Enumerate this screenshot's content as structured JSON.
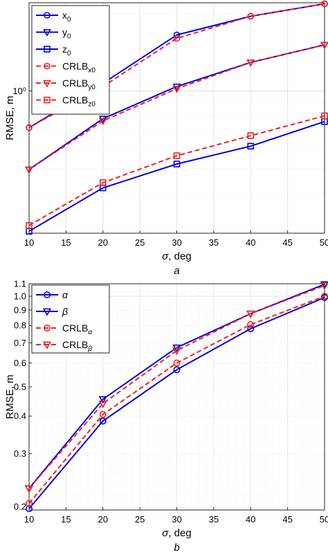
{
  "chart_data": [
    {
      "panel_label": "a",
      "type": "line",
      "yscale": "log",
      "grid": true,
      "xlabel": "σ, deg",
      "ylabel": "RMSE, m",
      "xlim": [
        10,
        50
      ],
      "ylim": [
        0.28,
        2.2
      ],
      "x_ticks": [
        10,
        15,
        20,
        25,
        30,
        35,
        40,
        45,
        50
      ],
      "y_ticks": [
        1
      ],
      "y_tick_labels": [
        "10⁰"
      ],
      "legend_position": "top-left",
      "x": [
        10,
        20,
        30,
        40,
        50
      ],
      "series": [
        {
          "name": "x",
          "sub": "0",
          "color": "#0000dd",
          "dash": "solid",
          "marker": "circle",
          "values": [
            0.72,
            1.07,
            1.65,
            1.95,
            2.18
          ]
        },
        {
          "name": "y",
          "sub": "0",
          "color": "#0000dd",
          "dash": "solid",
          "marker": "triangle-down",
          "values": [
            0.495,
            0.78,
            1.04,
            1.29,
            1.51
          ]
        },
        {
          "name": "z",
          "sub": "0",
          "color": "#0000dd",
          "dash": "solid",
          "marker": "square",
          "values": [
            0.285,
            0.42,
            0.52,
            0.61,
            0.76
          ]
        },
        {
          "name": "CRLB",
          "sub": "x0",
          "color": "#ee2222",
          "dash": "dashed",
          "marker": "circle",
          "values": [
            0.72,
            1.04,
            1.6,
            1.95,
            2.18
          ]
        },
        {
          "name": "CRLB",
          "sub": "y0",
          "color": "#ee2222",
          "dash": "dashed",
          "marker": "triangle-down",
          "values": [
            0.495,
            0.765,
            1.02,
            1.29,
            1.51
          ]
        },
        {
          "name": "CRLB",
          "sub": "z0",
          "color": "#ee2222",
          "dash": "dashed",
          "marker": "square",
          "values": [
            0.3,
            0.44,
            0.56,
            0.67,
            0.8
          ]
        }
      ]
    },
    {
      "panel_label": "b",
      "type": "line",
      "yscale": "log",
      "grid": true,
      "xlabel": "σ, deg",
      "ylabel": "RMSE, m",
      "xlim": [
        10,
        50
      ],
      "ylim": [
        0.195,
        1.1
      ],
      "x_ticks": [
        10,
        15,
        20,
        25,
        30,
        35,
        40,
        45,
        50
      ],
      "y_ticks": [
        0.2,
        0.3,
        0.4,
        0.5,
        0.6,
        0.7,
        0.8,
        0.9,
        1.0,
        1.1
      ],
      "y_tick_labels": [
        "0.2",
        "0.3",
        "0.4",
        "0.5",
        "0.6",
        "0.7",
        "0.8",
        "0.9",
        "1.0",
        "1.1"
      ],
      "legend_position": "top-left",
      "x": [
        10,
        20,
        30,
        40,
        50
      ],
      "series": [
        {
          "name": "α",
          "sub": "",
          "color": "#0000dd",
          "dash": "solid",
          "marker": "circle",
          "values": [
            0.197,
            0.385,
            0.57,
            0.78,
            0.99
          ]
        },
        {
          "name": "β",
          "sub": "",
          "color": "#0000dd",
          "dash": "solid",
          "marker": "triangle-down",
          "values": [
            0.23,
            0.455,
            0.675,
            0.875,
            1.095
          ]
        },
        {
          "name": "CRLB",
          "sub": "α",
          "color": "#ee2222",
          "dash": "dashed",
          "marker": "circle",
          "values": [
            0.205,
            0.405,
            0.6,
            0.805,
            1.0
          ]
        },
        {
          "name": "CRLB",
          "sub": "β",
          "color": "#ee2222",
          "dash": "dashed",
          "marker": "triangle-down",
          "values": [
            0.23,
            0.44,
            0.66,
            0.875,
            1.085
          ]
        }
      ]
    }
  ]
}
